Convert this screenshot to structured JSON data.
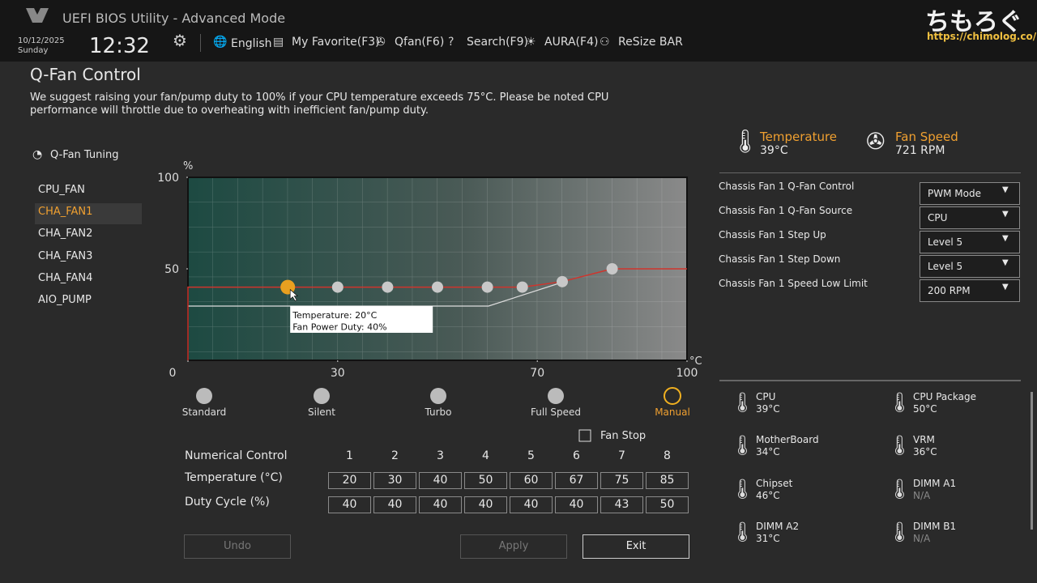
{
  "header": {
    "title": "UEFI BIOS Utility - Advanced Mode",
    "date": "10/12/2025",
    "day": "Sunday",
    "time": "12:32",
    "menu": [
      "English",
      "My Favorite(F3)",
      "Qfan(F6)",
      "Search(F9)",
      "AURA(F4)",
      "ReSize BAR"
    ],
    "watermark": "ちもろぐ",
    "watermark_url": "https://chimolog.co/"
  },
  "page": {
    "title": "Q-Fan Control",
    "notice": "We suggest raising your fan/pump duty to 100% if your CPU temperature exceeds 75°C. Please be noted CPU performance will throttle due to overheating with inefficient fan/pump duty."
  },
  "sidebar": {
    "heading": "Q-Fan Tuning",
    "fans": [
      "CPU_FAN",
      "CHA_FAN1",
      "CHA_FAN2",
      "CHA_FAN3",
      "CHA_FAN4",
      "AIO_PUMP"
    ]
  },
  "fan_curve": {
    "type": "line",
    "y_unit": "%",
    "x_unit": "°C",
    "xlim": [
      0,
      100
    ],
    "ylim": [
      0,
      100
    ],
    "xticks": [
      0,
      30,
      70,
      100
    ],
    "yticks": [
      50,
      100
    ],
    "color": "#d0342c",
    "tooltip": [
      "Temperature: 20°C",
      "Fan Power Duty: 40%"
    ]
  },
  "presets": [
    "Standard",
    "Silent",
    "Turbo",
    "Full Speed",
    "Manual"
  ],
  "fan_stop": "Fan Stop",
  "table": {
    "header": "Numerical Control",
    "columns": [
      1,
      2,
      3,
      4,
      5,
      6,
      7,
      8
    ],
    "rows": [
      {
        "label": "Temperature (°C)",
        "values": [
          20,
          30,
          40,
          50,
          60,
          67,
          75,
          85
        ]
      },
      {
        "label": "Duty Cycle (%)",
        "values": [
          40,
          40,
          40,
          40,
          40,
          40,
          43,
          50
        ]
      }
    ]
  },
  "buttons": [
    "Undo",
    "Apply",
    "Exit"
  ],
  "status": [
    {
      "label": "Temperature",
      "value": "39°C"
    },
    {
      "label": "Fan Speed",
      "value": "721 RPM"
    }
  ],
  "settings": [
    {
      "label": "Chassis Fan 1 Q-Fan Control",
      "value": "PWM Mode"
    },
    {
      "label": "Chassis Fan 1 Q-Fan Source",
      "value": "CPU"
    },
    {
      "label": "Chassis Fan 1 Step Up",
      "value": "Level 5"
    },
    {
      "label": "Chassis Fan 1 Step Down",
      "value": "Level 5"
    },
    {
      "label": "Chassis Fan 1 Speed Low Limit",
      "value": "200 RPM"
    }
  ],
  "sensors": [
    {
      "name": "CPU",
      "value": "39°C"
    },
    {
      "name": "CPU Package",
      "value": "50°C"
    },
    {
      "name": "MotherBoard",
      "value": "34°C"
    },
    {
      "name": "VRM",
      "value": "36°C"
    },
    {
      "name": "Chipset",
      "value": "46°C"
    },
    {
      "name": "DIMM A1",
      "value": "N/A"
    },
    {
      "name": "DIMM A2",
      "value": "31°C"
    },
    {
      "name": "DIMM B1",
      "value": "N/A"
    }
  ]
}
